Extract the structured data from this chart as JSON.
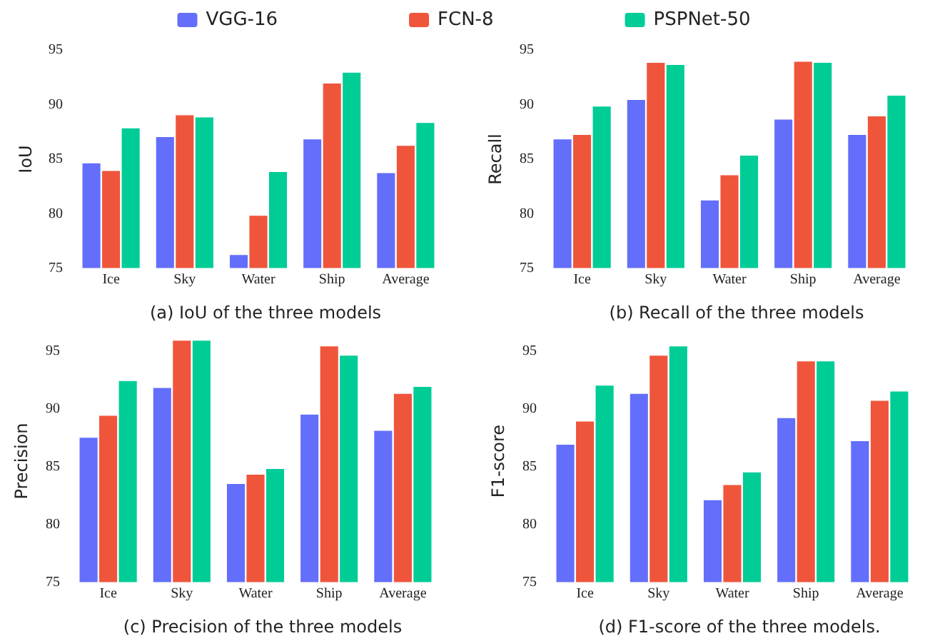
{
  "chart_data": [
    {
      "type": "bar",
      "title": "(a) IoU of the three models",
      "ylabel": "IoU",
      "categories": [
        "Ice",
        "Sky",
        "Water",
        "Ship",
        "Average"
      ],
      "ylim": [
        75,
        95
      ],
      "yticks": [
        75,
        80,
        85,
        90,
        95
      ],
      "grid": false,
      "legend": "top",
      "series": [
        {
          "name": "VGG-16",
          "color": "#636efa",
          "values": [
            84.7,
            87.1,
            76.3,
            86.9,
            83.8
          ]
        },
        {
          "name": "FCN-8",
          "color": "#ef553b",
          "values": [
            84.0,
            89.1,
            79.9,
            92.0,
            86.3
          ]
        },
        {
          "name": "PSPNet-50",
          "color": "#00cc96",
          "values": [
            87.9,
            88.9,
            83.9,
            93.0,
            88.4
          ]
        }
      ]
    },
    {
      "type": "bar",
      "title": "(b) Recall of the three models",
      "ylabel": "Recall",
      "categories": [
        "Ice",
        "Sky",
        "Water",
        "Ship",
        "Average"
      ],
      "ylim": [
        75,
        95
      ],
      "yticks": [
        75,
        80,
        85,
        90,
        95
      ],
      "grid": false,
      "series": [
        {
          "color": "#636efa",
          "values": [
            86.9,
            90.5,
            81.3,
            88.7,
            87.3
          ]
        },
        {
          "color": "#ef553b",
          "values": [
            87.3,
            93.9,
            83.6,
            94.0,
            89.0
          ]
        },
        {
          "color": "#00cc96",
          "values": [
            89.9,
            93.7,
            85.4,
            93.9,
            90.9
          ]
        }
      ]
    },
    {
      "type": "bar",
      "title": "(c) Precision of the three models",
      "ylabel": "Precision",
      "categories": [
        "Ice",
        "Sky",
        "Water",
        "Ship",
        "Average"
      ],
      "ylim": [
        75,
        96
      ],
      "yticks": [
        75,
        80,
        85,
        90,
        95
      ],
      "grid": false,
      "series": [
        {
          "color": "#636efa",
          "values": [
            87.6,
            91.9,
            83.6,
            89.6,
            88.2
          ]
        },
        {
          "color": "#ef553b",
          "values": [
            89.5,
            96.0,
            84.4,
            95.5,
            91.4
          ]
        },
        {
          "color": "#00cc96",
          "values": [
            92.5,
            96.0,
            84.9,
            94.7,
            92.0
          ]
        }
      ]
    },
    {
      "type": "bar",
      "title": "(d) F1-score of the three models.",
      "ylabel": "F1-score",
      "categories": [
        "Ice",
        "Sky",
        "Water",
        "Ship",
        "Average"
      ],
      "ylim": [
        75,
        96
      ],
      "yticks": [
        75,
        80,
        85,
        90,
        95
      ],
      "grid": false,
      "series": [
        {
          "color": "#636efa",
          "values": [
            87.0,
            91.4,
            82.2,
            89.3,
            87.3
          ]
        },
        {
          "color": "#ef553b",
          "values": [
            89.0,
            94.7,
            83.5,
            94.2,
            90.8
          ]
        },
        {
          "color": "#00cc96",
          "values": [
            92.1,
            95.5,
            84.6,
            94.2,
            91.6
          ]
        }
      ]
    }
  ]
}
